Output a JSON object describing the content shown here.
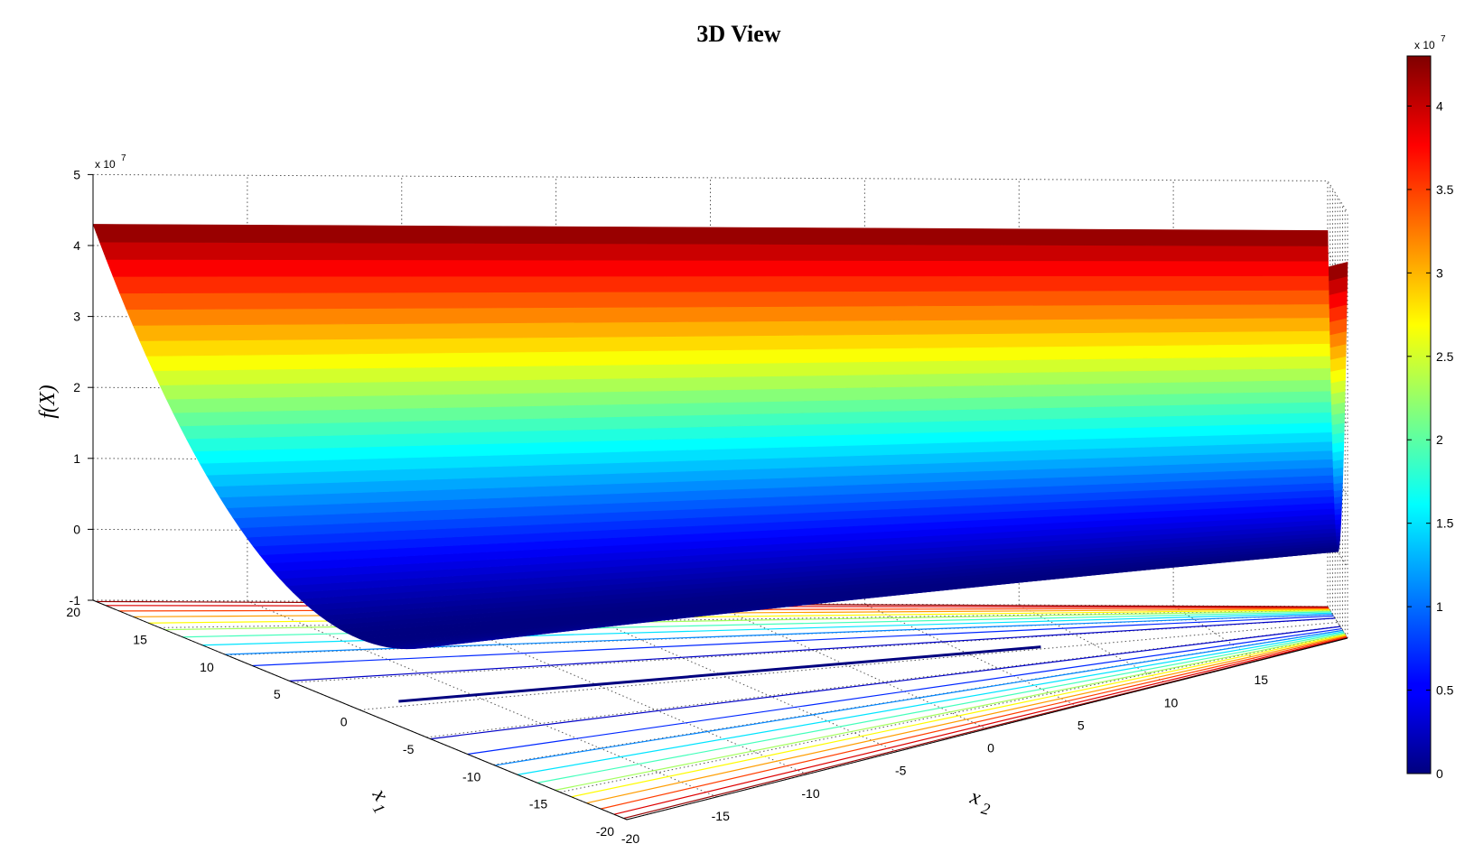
{
  "chart_data": {
    "type": "surface",
    "title": "3D View",
    "xlabel": "x",
    "xlabel_sub": "1",
    "ylabel": "x",
    "ylabel_sub": "2",
    "zlabel": "f(X)",
    "x1_range": [
      -20,
      20
    ],
    "x2_range": [
      -20,
      20
    ],
    "z_range": [
      -1,
      5
    ],
    "z_multiplier_base": "x 10",
    "z_multiplier_exp": "7",
    "x1_ticks": [
      -20,
      -15,
      -10,
      -5,
      0,
      5,
      10,
      15,
      20
    ],
    "x2_ticks": [
      -20,
      -15,
      -10,
      -5,
      0,
      5,
      10,
      15
    ],
    "z_ticks": [
      -1,
      0,
      1,
      2,
      3,
      4,
      5
    ],
    "surface": {
      "description": "parabolic valley along x2 axis",
      "z_at_x1_edge_near": 4.3,
      "z_at_x1_edge_far": 4.3,
      "z_min": 0
    },
    "contours_on_floor": true,
    "grid": true,
    "colormap": "jet",
    "colorbar": {
      "range": [
        0,
        4.3
      ],
      "ticks": [
        0,
        0.5,
        1,
        1.5,
        2,
        2.5,
        3,
        3.5,
        4
      ],
      "tick_labels": [
        "0",
        "0.5",
        "1",
        "1.5",
        "2",
        "2.5",
        "3",
        "3.5",
        "4"
      ],
      "multiplier_base": "x 10",
      "multiplier_exp": "7"
    }
  }
}
